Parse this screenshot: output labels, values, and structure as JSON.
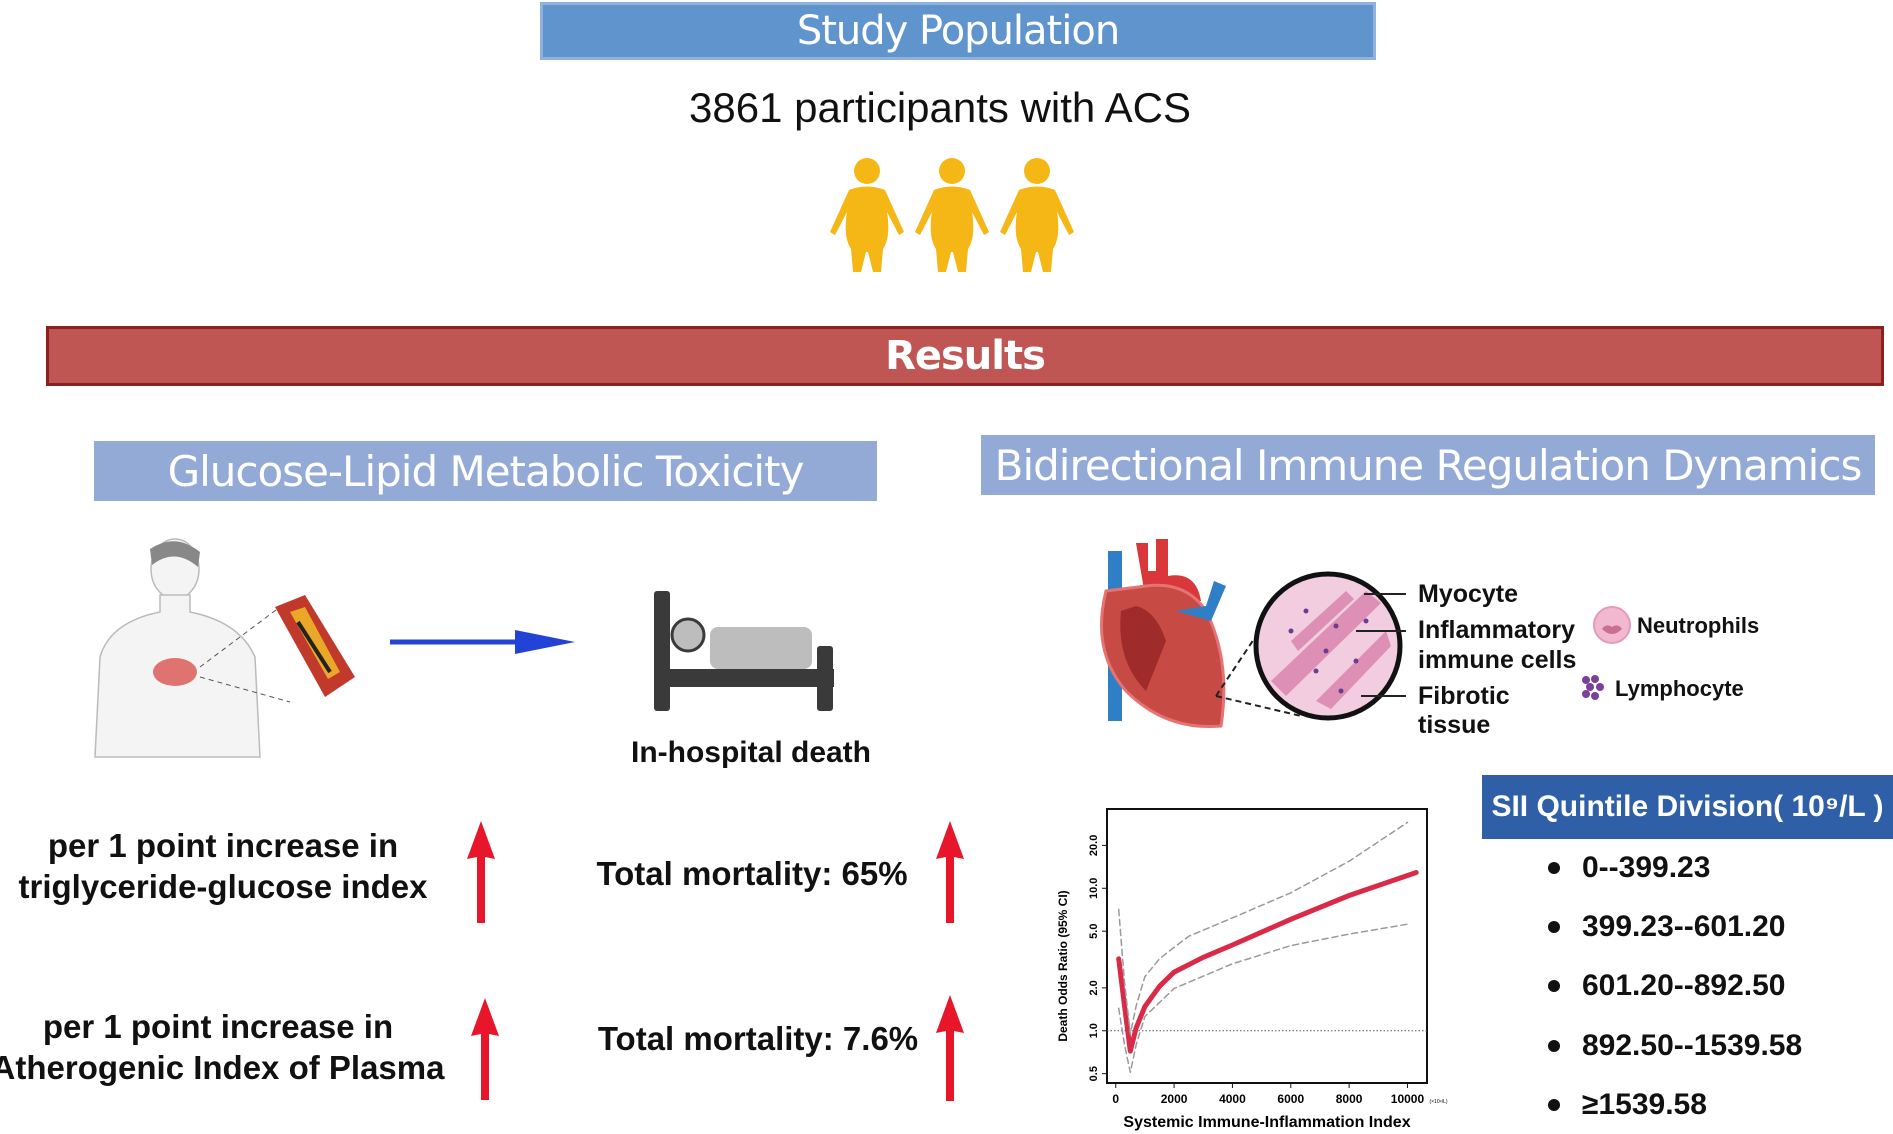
{
  "study": {
    "title": "Study Population",
    "participants": "3861 participants with ACS",
    "people_icon_color": "#f5b716"
  },
  "results": {
    "title": "Results"
  },
  "left": {
    "title": "Glucose-Lipid Metabolic Toxicity",
    "outcome": "In-hospital death",
    "rows": [
      {
        "line1": "per 1 point increase in",
        "line2": "triglyceride-glucose index",
        "result": "Total mortality: 65%"
      },
      {
        "line1": "per 1 point increase in",
        "line2": "Atherogenic Index of Plasma",
        "result": "Total mortality: 7.6%"
      }
    ],
    "arrow_color": "#e8162b"
  },
  "right": {
    "title": "Bidirectional Immune Regulation Dynamics",
    "labels": {
      "myocyte": "Myocyte",
      "inflam1": "Inflammatory",
      "inflam2": "immune cells",
      "fib1": "Fibrotic",
      "fib2": "tissue",
      "neutrophils": "Neutrophils",
      "lymphocyte": "Lymphocyte"
    },
    "sii": {
      "title": "SII Quintile Division( 10⁹/L )",
      "items": [
        "0--399.23",
        "399.23--601.20",
        "601.20--892.50",
        "892.50--1539.58",
        "≥1539.58"
      ]
    }
  },
  "chart_data": {
    "type": "line",
    "xlabel": "Systemic Immune-Inflammation Index",
    "xunit": "(×10⁹/L)",
    "ylabel": "Death Odds Ratio (95% CI)",
    "yscale": "log",
    "xlim": [
      -300,
      10670
    ],
    "ylim": [
      0.43,
      36
    ],
    "xticks": [
      "0",
      "2000",
      "4000",
      "6000",
      "8000",
      "10000"
    ],
    "yticks": [
      "0.5",
      "1.0",
      "2.0",
      "5.0",
      "10.0",
      "20.0"
    ],
    "reference_line": 1.0,
    "series": [
      {
        "role": "estimate",
        "color": "#d92b48",
        "x": [
          100,
          300,
          500,
          700,
          1000,
          1500,
          2000,
          3000,
          4000,
          6000,
          8000,
          10300
        ],
        "y": [
          3.2,
          1.5,
          0.72,
          1.05,
          1.48,
          2.05,
          2.58,
          3.28,
          4.0,
          6.06,
          8.9,
          12.9
        ]
      },
      {
        "role": "upper-ci",
        "color": "#999999",
        "x": [
          100,
          300,
          500,
          700,
          1000,
          1500,
          2000,
          2500,
          4000,
          6000,
          8000,
          10000
        ],
        "y": [
          7.1,
          2.2,
          0.95,
          1.5,
          2.4,
          3.2,
          3.85,
          4.6,
          6.2,
          9.3,
          15.5,
          29
        ]
      },
      {
        "role": "lower-ci",
        "color": "#999999",
        "x": [
          100,
          300,
          500,
          700,
          1000,
          2000,
          4000,
          6000,
          8000,
          10000
        ],
        "y": [
          1.44,
          0.8,
          0.51,
          0.8,
          1.26,
          1.98,
          2.95,
          3.96,
          4.77,
          5.6
        ]
      }
    ],
    "grid": false,
    "legend": "none"
  }
}
